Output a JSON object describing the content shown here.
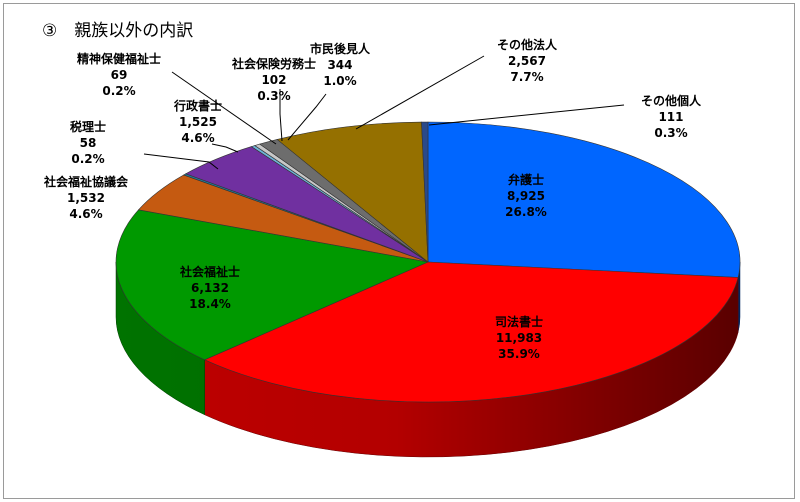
{
  "chart_data": {
    "type": "pie",
    "title": "③　親族以外の内訳",
    "style": "3d",
    "slices": [
      {
        "label": "弁護士",
        "value": 8925,
        "value_text": "8,925",
        "percent": "26.8%",
        "color": "#0066ff"
      },
      {
        "label": "司法書士",
        "value": 11983,
        "value_text": "11,983",
        "percent": "35.9%",
        "color": "#ff0000"
      },
      {
        "label": "社会福祉士",
        "value": 6132,
        "value_text": "6,132",
        "percent": "18.4%",
        "color": "#009900"
      },
      {
        "label": "社会福祉協議会",
        "value": 1532,
        "value_text": "1,532",
        "percent": "4.6%",
        "color": "#c55a11"
      },
      {
        "label": "税理士",
        "value": 58,
        "value_text": "58",
        "percent": "0.2%",
        "color": "#1f7a9a"
      },
      {
        "label": "行政書士",
        "value": 1525,
        "value_text": "1,525",
        "percent": "4.6%",
        "color": "#7030a0"
      },
      {
        "label": "精神保健福祉士",
        "value": 69,
        "value_text": "69",
        "percent": "0.2%",
        "color": "#6fb3d8"
      },
      {
        "label": "社会保険労務士",
        "value": 102,
        "value_text": "102",
        "percent": "0.3%",
        "color": "#c8c8c8"
      },
      {
        "label": "市民後見人",
        "value": 344,
        "value_text": "344",
        "percent": "1.0%",
        "color": "#6d6d6d"
      },
      {
        "label": "その他法人",
        "value": 2567,
        "value_text": "2,567",
        "percent": "7.7%",
        "color": "#957000"
      },
      {
        "label": "その他個人",
        "value": 111,
        "value_text": "111",
        "percent": "0.3%",
        "color": "#2a4a8a"
      }
    ]
  }
}
